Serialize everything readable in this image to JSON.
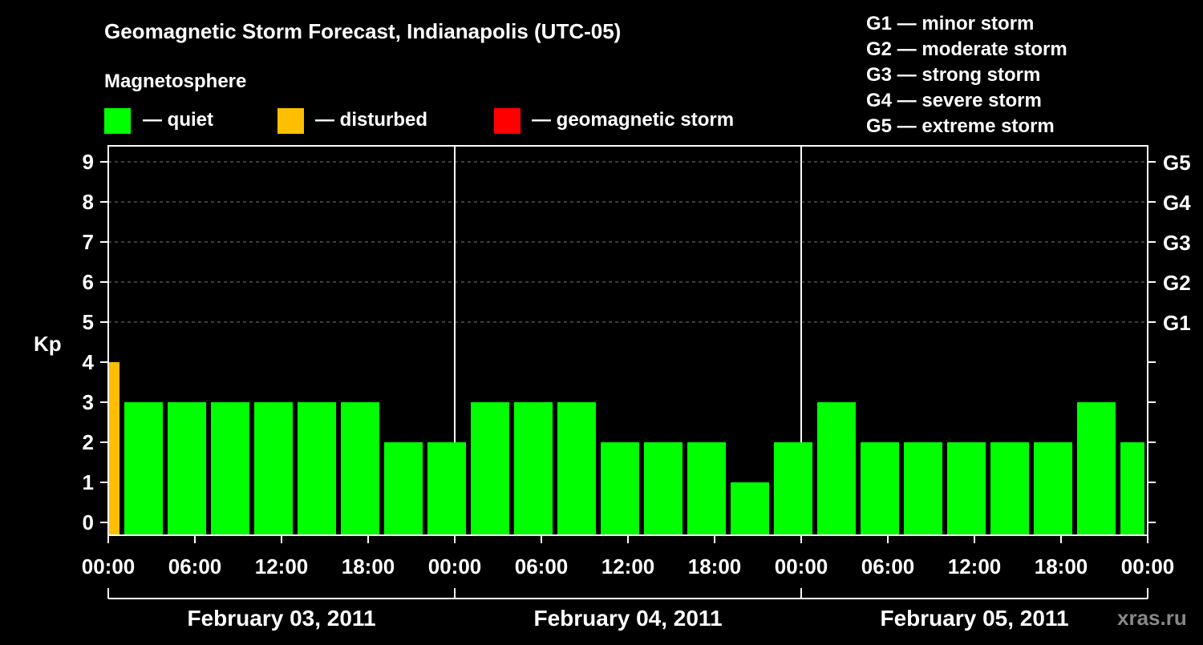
{
  "chart_data": {
    "type": "bar",
    "title": "Geomagnetic Storm Forecast, Indianapolis (UTC-05)",
    "ylabel": "Kp",
    "ylim": [
      0,
      9
    ],
    "yticks": [
      "0",
      "1",
      "2",
      "3",
      "4",
      "5",
      "6",
      "7",
      "8",
      "9"
    ],
    "storm_levels": [
      {
        "kp": 5,
        "label": "G1"
      },
      {
        "kp": 6,
        "label": "G2"
      },
      {
        "kp": 7,
        "label": "G3"
      },
      {
        "kp": 8,
        "label": "G4"
      },
      {
        "kp": 9,
        "label": "G5"
      }
    ],
    "x_tick_labels": [
      "00:00",
      "06:00",
      "12:00",
      "18:00",
      "00:00",
      "06:00",
      "12:00",
      "18:00",
      "00:00",
      "06:00",
      "12:00",
      "18:00",
      "00:00"
    ],
    "days": [
      "February 03, 2011",
      "February 04, 2011",
      "February 05, 2011"
    ],
    "hours_total": 72,
    "bar_start_hours": [
      0,
      1,
      4,
      7,
      10,
      13,
      16,
      19,
      22,
      25,
      28,
      31,
      34,
      37,
      40,
      43,
      46,
      49,
      52,
      55,
      58,
      61,
      64,
      67,
      70
    ],
    "bar_end_hours": [
      1,
      4,
      7,
      10,
      13,
      16,
      19,
      22,
      25,
      28,
      31,
      34,
      37,
      40,
      43,
      46,
      49,
      52,
      55,
      58,
      61,
      64,
      67,
      70,
      72
    ],
    "values": [
      4,
      3,
      3,
      3,
      3,
      3,
      3,
      2,
      2,
      3,
      3,
      3,
      2,
      2,
      2,
      1,
      2,
      3,
      2,
      2,
      2,
      2,
      2,
      3,
      2
    ],
    "status": [
      "disturbed",
      "quiet",
      "quiet",
      "quiet",
      "quiet",
      "quiet",
      "quiet",
      "quiet",
      "quiet",
      "quiet",
      "quiet",
      "quiet",
      "quiet",
      "quiet",
      "quiet",
      "quiet",
      "quiet",
      "quiet",
      "quiet",
      "quiet",
      "quiet",
      "quiet",
      "quiet",
      "quiet",
      "quiet"
    ],
    "colors": {
      "quiet": "#00ff00",
      "disturbed": "#ffbf00",
      "storm": "#ff0000"
    }
  },
  "magnetosphere_label": "Magnetosphere",
  "legend": {
    "quiet": "— quiet",
    "disturbed": "— disturbed",
    "storm": "— geomagnetic storm"
  },
  "scale": [
    "G1 — minor storm",
    "G2 — moderate storm",
    "G3 — strong storm",
    "G4 — severe storm",
    "G5 — extreme storm"
  ],
  "credit": "xras.ru"
}
